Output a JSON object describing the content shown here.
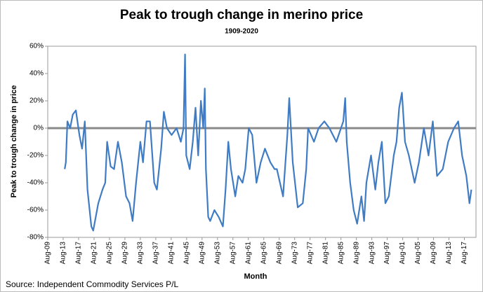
{
  "chart_data": {
    "type": "line",
    "title": "Peak to trough change in merino price",
    "subtitle": "1909-2020",
    "x_label": "Month",
    "y_label": "Peak to trough change in price",
    "source": "Source: Independent Commodity Services P/L",
    "color": "#3f7cc4",
    "x": [
      1914.0,
      1914.3,
      1914.7,
      1915.4,
      1916.1,
      1916.9,
      1917.8,
      1918.5,
      1919.2,
      1919.9,
      1920.9,
      1921.4,
      1922.7,
      1923.8,
      1924.5,
      1925.0,
      1925.9,
      1926.8,
      1927.8,
      1928.8,
      1929.9,
      1930.8,
      1931.6,
      1932.5,
      1933.6,
      1934.3,
      1935.2,
      1936.1,
      1937.2,
      1937.9,
      1939.0,
      1939.7,
      1940.5,
      1941.7,
      1943.0,
      1944.1,
      1944.8,
      1945.2,
      1945.5,
      1946.4,
      1947.2,
      1947.9,
      1948.6,
      1949.3,
      1949.9,
      1950.3,
      1950.6,
      1951.2,
      1951.7,
      1952.8,
      1953.9,
      1955.0,
      1955.7,
      1956.4,
      1957.1,
      1958.2,
      1959.0,
      1960.1,
      1960.8,
      1961.7,
      1962.6,
      1963.7,
      1964.8,
      1965.9,
      1967.3,
      1968.4,
      1969.0,
      1970.6,
      1971.7,
      1972.2,
      1973.1,
      1974.4,
      1975.7,
      1976.6,
      1977.1,
      1978.6,
      1979.8,
      1981.3,
      1982.6,
      1984.4,
      1986.2,
      1986.7,
      1987.1,
      1988.0,
      1988.9,
      1989.8,
      1990.9,
      1991.6,
      1992.2,
      1993.4,
      1994.5,
      1995.3,
      1996.2,
      1997.1,
      1998.0,
      1999.3,
      2000.0,
      2000.7,
      2001.4,
      2002.2,
      2003.2,
      2004.7,
      2005.8,
      2007.1,
      2008.3,
      2009.4,
      2010.5,
      2012.0,
      2013.4,
      2014.9,
      2016.0,
      2017.0,
      2018.1,
      2018.9,
      2019.4
    ],
    "values": [
      -30,
      -25,
      5,
      0,
      10,
      13,
      -5,
      -15,
      5,
      -45,
      -72,
      -75,
      -55,
      -45,
      -40,
      -10,
      -28,
      -30,
      -10,
      -25,
      -50,
      -55,
      -68,
      -40,
      -10,
      -25,
      5,
      5,
      -40,
      -45,
      -15,
      12,
      0,
      -5,
      0,
      -10,
      0,
      54,
      -20,
      -30,
      -10,
      15,
      -20,
      20,
      0,
      29,
      -30,
      -65,
      -68,
      -60,
      -65,
      -72,
      -45,
      -10,
      -30,
      -50,
      -35,
      -40,
      -30,
      0,
      -5,
      -40,
      -25,
      -15,
      -25,
      -30,
      -30,
      -50,
      -5,
      22,
      -25,
      -58,
      -55,
      -30,
      0,
      -10,
      0,
      5,
      0,
      -10,
      5,
      22,
      -10,
      -40,
      -60,
      -70,
      -50,
      -68,
      -40,
      -20,
      -45,
      -25,
      -10,
      -55,
      -50,
      -20,
      -10,
      15,
      26,
      -10,
      -20,
      -40,
      -25,
      0,
      -20,
      5,
      -35,
      -30,
      -10,
      0,
      5,
      -20,
      -35,
      -55,
      -45
    ],
    "xlim": [
      1909.6,
      2020.6
    ],
    "xticks": [
      {
        "value": 1909.6,
        "label": "Aug-09"
      },
      {
        "value": 1913.6,
        "label": "Aug-13"
      },
      {
        "value": 1917.6,
        "label": "Aug-17"
      },
      {
        "value": 1921.6,
        "label": "Aug-21"
      },
      {
        "value": 1925.6,
        "label": "Aug-25"
      },
      {
        "value": 1929.6,
        "label": "Aug-29"
      },
      {
        "value": 1933.6,
        "label": "Aug-33"
      },
      {
        "value": 1937.6,
        "label": "Aug-37"
      },
      {
        "value": 1941.6,
        "label": "Aug-41"
      },
      {
        "value": 1945.6,
        "label": "Aug-45"
      },
      {
        "value": 1949.6,
        "label": "Aug-49"
      },
      {
        "value": 1953.6,
        "label": "Aug-53"
      },
      {
        "value": 1957.6,
        "label": "Aug-57"
      },
      {
        "value": 1961.6,
        "label": "Aug-61"
      },
      {
        "value": 1965.6,
        "label": "Aug-65"
      },
      {
        "value": 1969.6,
        "label": "Aug-69"
      },
      {
        "value": 1973.6,
        "label": "Aug-73"
      },
      {
        "value": 1977.6,
        "label": "Aug-77"
      },
      {
        "value": 1981.6,
        "label": "Aug-81"
      },
      {
        "value": 1985.6,
        "label": "Aug-85"
      },
      {
        "value": 1989.6,
        "label": "Aug-89"
      },
      {
        "value": 1993.6,
        "label": "Aug-93"
      },
      {
        "value": 1997.6,
        "label": "Aug-97"
      },
      {
        "value": 2001.6,
        "label": "Aug-01"
      },
      {
        "value": 2005.6,
        "label": "Aug-05"
      },
      {
        "value": 2009.6,
        "label": "Aug-09"
      },
      {
        "value": 2013.6,
        "label": "Aug-13"
      },
      {
        "value": 2017.6,
        "label": "Aug-17"
      }
    ],
    "ylim": [
      -80,
      60
    ],
    "yticks": [
      {
        "value": -80,
        "label": "-80%"
      },
      {
        "value": -60,
        "label": "-60%"
      },
      {
        "value": -40,
        "label": "-40%"
      },
      {
        "value": -20,
        "label": "-20%"
      },
      {
        "value": 0,
        "label": "0%"
      },
      {
        "value": 20,
        "label": "20%"
      },
      {
        "value": 40,
        "label": "40%"
      },
      {
        "value": 60,
        "label": "60%"
      }
    ],
    "grid": false
  }
}
